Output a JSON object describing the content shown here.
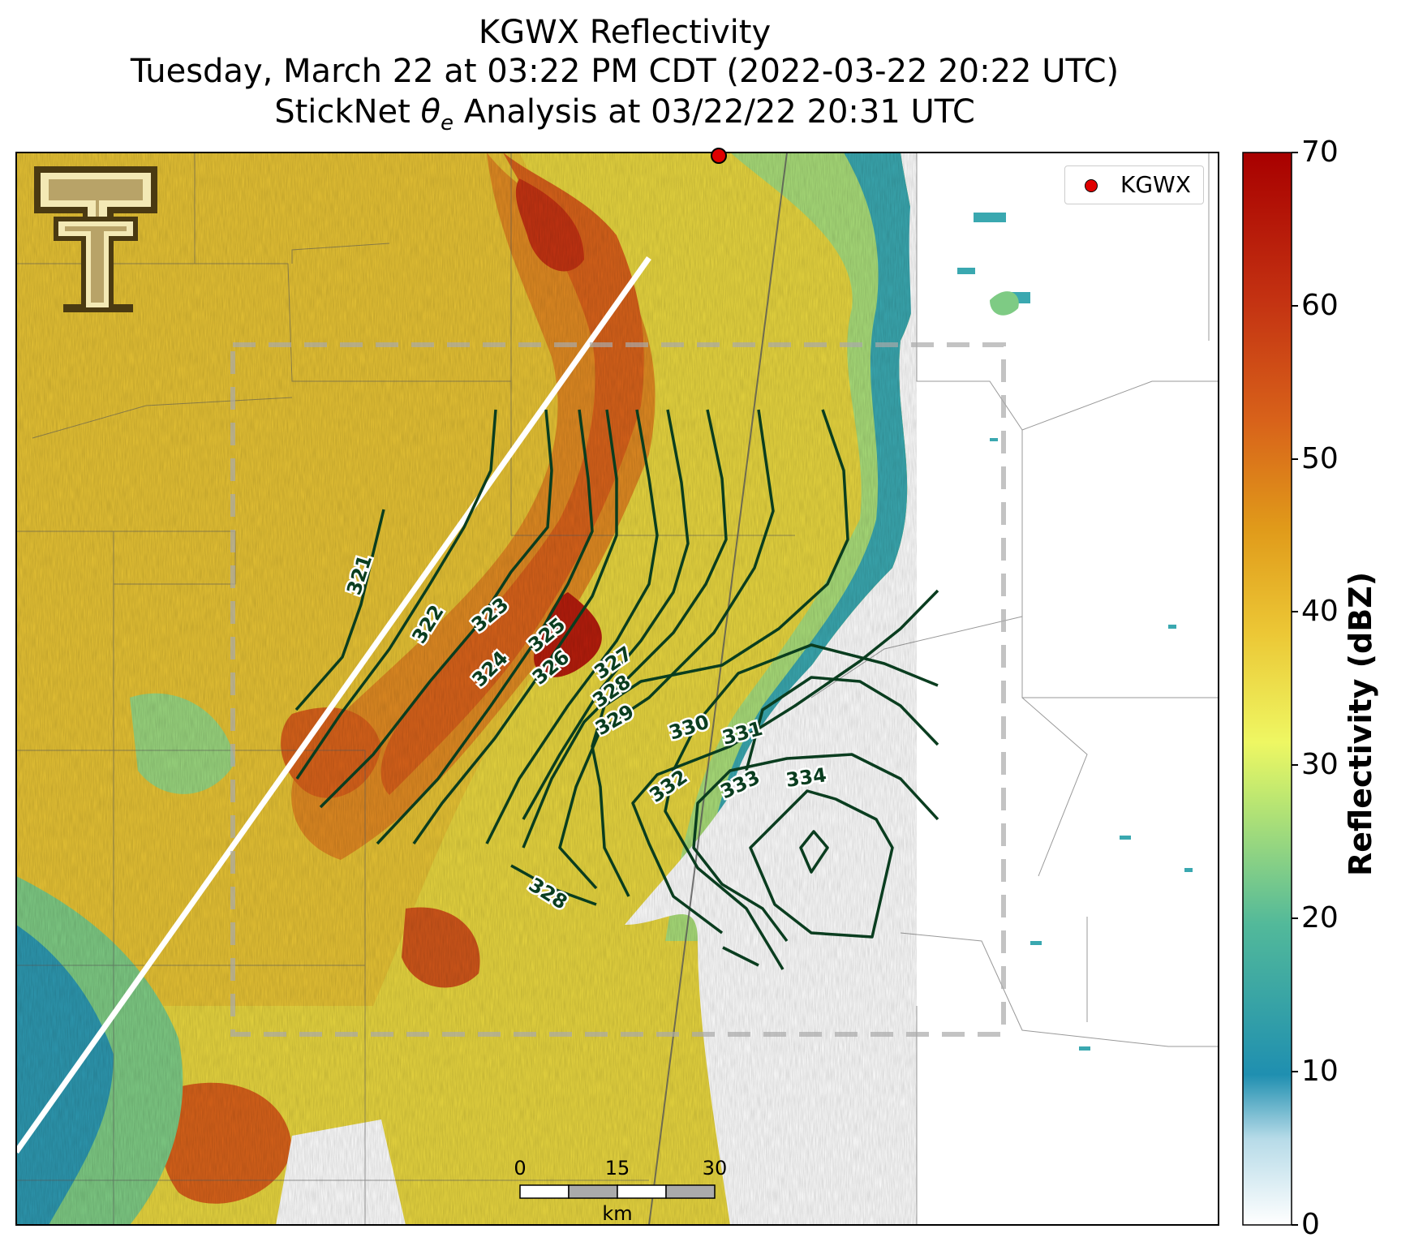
{
  "title": {
    "line1": "KGWX Reflectivity",
    "line2": "Tuesday, March 22 at 03:22 PM CDT (2022-03-22 20:22 UTC)",
    "line3_prefix": "StickNet ",
    "line3_symbol": "θ",
    "line3_sub": "e",
    "line3_suffix": " Analysis at 03/22/22 20:31 UTC"
  },
  "legend": {
    "label": "KGWX",
    "marker_color": "#e00000"
  },
  "colorbar": {
    "label": "Reflectivity (dBZ)",
    "ticks": [
      "70",
      "60",
      "50",
      "40",
      "30",
      "20",
      "10",
      "0"
    ],
    "colors": [
      "#fdfdfd",
      "#1f8fb0",
      "#3dae9a",
      "#8fd67a",
      "#e7f563",
      "#e8c332",
      "#e09a1a",
      "#d8621a",
      "#c43312",
      "#a80000"
    ]
  },
  "contours": {
    "labels": [
      "321",
      "322",
      "323",
      "324",
      "325",
      "326",
      "327",
      "328",
      "329",
      "330",
      "331",
      "332",
      "333",
      "334",
      "328"
    ],
    "color": "#0a3d1f"
  },
  "scalebar": {
    "ticks": [
      "0",
      "15",
      "30"
    ],
    "unit": "km"
  },
  "logo": {
    "letter": "T"
  }
}
